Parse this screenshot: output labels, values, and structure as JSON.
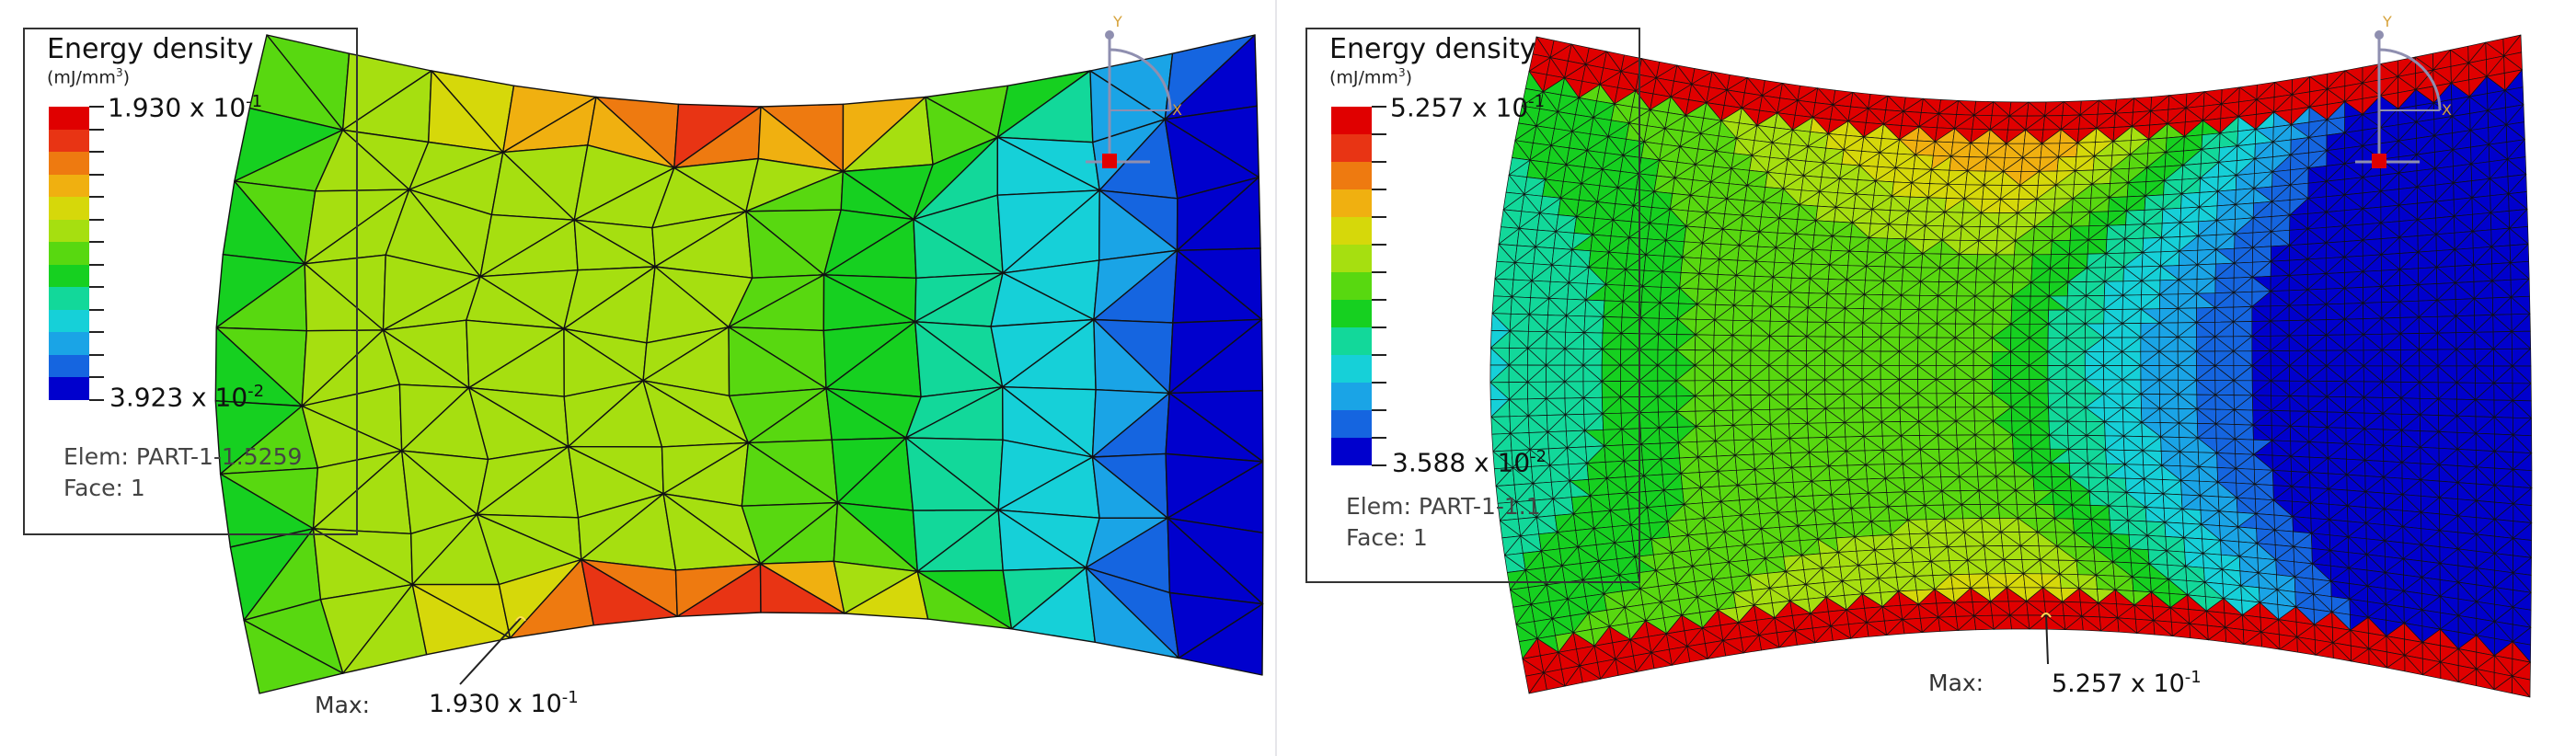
{
  "colormap": [
    "#0000cd",
    "#1565e0",
    "#1aa4e6",
    "#16d0d8",
    "#12d89a",
    "#16d020",
    "#58d810",
    "#a6df10",
    "#d6d80a",
    "#f0b010",
    "#ee7a10",
    "#e83414",
    "#e00000"
  ],
  "panels": [
    {
      "legend": {
        "title": "Energy density",
        "unit_base": "(mJ/mm",
        "unit_exp": "3",
        "unit_close": ")",
        "max_mantissa": "1.930 x 10",
        "max_exp": "-1",
        "min_mantissa": "3.923 x 10",
        "min_exp": "-2",
        "elem": "Elem: PART-1-1.5259",
        "face": "Face: 1"
      },
      "max_label": "Max:",
      "max_mantissa": "1.930 x 10",
      "max_exp": "-1",
      "triad": {
        "y": "Y",
        "x": "X"
      }
    },
    {
      "legend": {
        "title": "Energy density",
        "unit_base": "(mJ/mm",
        "unit_exp": "3",
        "unit_close": ")",
        "max_mantissa": "5.257 x 10",
        "max_exp": "-1",
        "min_mantissa": "3.588 x 10",
        "min_exp": "-2",
        "elem": "Elem: PART-1-1.1",
        "face": "Face: 1"
      },
      "max_label": "Max:",
      "max_mantissa": "5.257 x 10",
      "max_exp": "-1",
      "triad": {
        "y": "Y",
        "x": "X"
      }
    }
  ]
}
